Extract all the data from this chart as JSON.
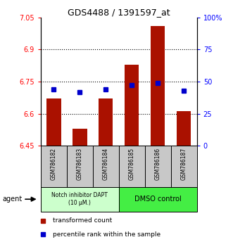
{
  "title": "GDS4488 / 1391597_at",
  "samples": [
    "GSM786182",
    "GSM786183",
    "GSM786184",
    "GSM786185",
    "GSM786186",
    "GSM786187"
  ],
  "red_values": [
    6.67,
    6.53,
    6.67,
    6.83,
    7.01,
    6.61
  ],
  "blue_values": [
    44,
    42,
    44,
    47,
    49,
    43
  ],
  "ylim_left": [
    6.45,
    7.05
  ],
  "ylim_right": [
    0,
    100
  ],
  "yticks_left": [
    6.45,
    6.6,
    6.75,
    6.9,
    7.05
  ],
  "yticks_right": [
    0,
    25,
    50,
    75,
    100
  ],
  "ytick_labels_left": [
    "6.45",
    "6.6",
    "6.75",
    "6.9",
    "7.05"
  ],
  "ytick_labels_right": [
    "0",
    "25",
    "50",
    "75",
    "100%"
  ],
  "hlines": [
    6.6,
    6.75,
    6.9
  ],
  "bar_color": "#aa1100",
  "marker_color": "#0000cc",
  "bar_bottom": 6.45,
  "bar_width": 0.55,
  "group1_label": "Notch inhibitor DAPT\n(10 μM.)",
  "group2_label": "DMSO control",
  "group1_color": "#ccffcc",
  "group2_color": "#44ee44",
  "group1_indices": [
    0,
    1,
    2
  ],
  "group2_indices": [
    3,
    4,
    5
  ],
  "agent_label": "agent",
  "legend_red": "transformed count",
  "legend_blue": "percentile rank within the sample",
  "tick_area_bg": "#c8c8c8"
}
